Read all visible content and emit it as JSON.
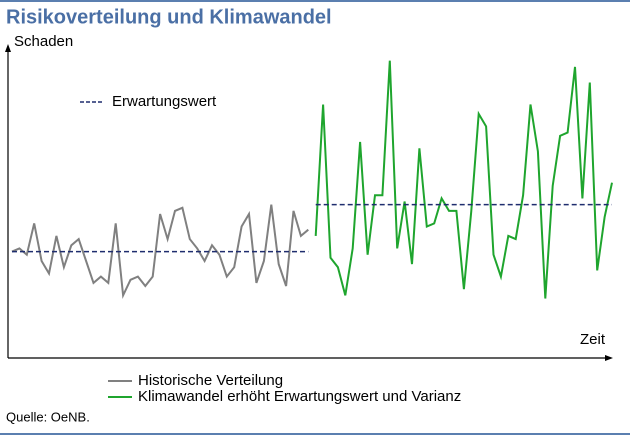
{
  "chart_data": {
    "type": "line",
    "title": "Risikoverteilung und Klimawandel",
    "y_label": "Schaden",
    "x_label": "Zeit",
    "source": "Quelle: OeNB.",
    "xlim": [
      0,
      81
    ],
    "ylim": [
      0,
      100
    ],
    "x": [
      0,
      1,
      2,
      3,
      4,
      5,
      6,
      7,
      8,
      9,
      10,
      11,
      12,
      13,
      14,
      15,
      16,
      17,
      18,
      19,
      20,
      21,
      22,
      23,
      24,
      25,
      26,
      27,
      28,
      29,
      30,
      31,
      32,
      33,
      34,
      35,
      36,
      37,
      38,
      39,
      40,
      41,
      42,
      43,
      44,
      45,
      46,
      47,
      48,
      49,
      50,
      51,
      52,
      53,
      54,
      55,
      56,
      57,
      58,
      59,
      60,
      61,
      62,
      63,
      64,
      65,
      66,
      67,
      68,
      69,
      70,
      71,
      72,
      73,
      74,
      75,
      76,
      77,
      78,
      79,
      80,
      81
    ],
    "series": [
      {
        "name": "Historische Verteilung",
        "color": "#808080",
        "values": [
          34,
          35,
          33,
          43,
          31,
          27,
          39,
          29,
          36,
          38,
          31,
          24,
          26,
          24,
          43,
          20,
          25,
          26,
          23,
          26,
          46,
          38,
          47,
          48,
          38,
          35,
          31,
          36,
          33,
          26,
          29,
          42,
          46,
          24,
          31,
          49,
          30,
          23,
          47,
          39,
          41,
          null,
          null,
          null,
          null,
          null,
          null,
          null,
          null,
          null,
          null,
          null,
          null,
          null,
          null,
          null,
          null,
          null,
          null,
          null,
          null,
          null,
          null,
          null,
          null,
          null,
          null,
          null,
          null,
          null,
          null,
          null,
          null,
          null,
          null,
          null,
          null,
          null,
          null,
          null,
          null,
          null
        ]
      },
      {
        "name": "Klimawandel erhöht Erwartungswert und Varianz",
        "color": "#1fa52e",
        "values": [
          null,
          null,
          null,
          null,
          null,
          null,
          null,
          null,
          null,
          null,
          null,
          null,
          null,
          null,
          null,
          null,
          null,
          null,
          null,
          null,
          null,
          null,
          null,
          null,
          null,
          null,
          null,
          null,
          null,
          null,
          null,
          null,
          null,
          null,
          null,
          null,
          null,
          null,
          null,
          null,
          null,
          39,
          81,
          32,
          29,
          20,
          35,
          69,
          33,
          52,
          52,
          95,
          35,
          50,
          30,
          67,
          42,
          43,
          51,
          47,
          47,
          22,
          47,
          78,
          74,
          33,
          26,
          39,
          38,
          52,
          81,
          66,
          19,
          55,
          71,
          72,
          93,
          51,
          88,
          28,
          45,
          56
        ]
      }
    ],
    "expected_value": {
      "name": "Erwartungswert",
      "color": "#1f2d6e",
      "values": [
        34,
        49
      ]
    }
  }
}
